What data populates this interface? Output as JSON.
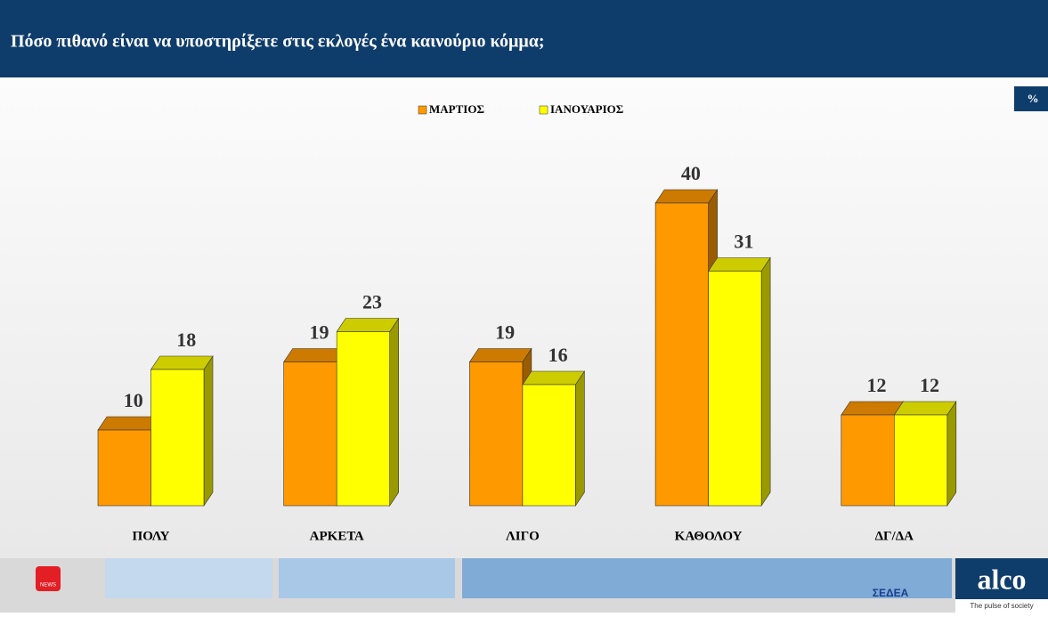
{
  "chart_data": {
    "type": "bar3d",
    "title": "Πόσο πιθανό είναι να υποστηρίξετε στις εκλογές ένα καινούριο κόμμα;",
    "unit_badge": "%",
    "categories": [
      "ΠΟΛΥ",
      "ΑΡΚΕΤΑ",
      "ΛΙΓΟ",
      "ΚΑΘΟΛΟΥ",
      "ΔΓ/ΔΑ"
    ],
    "series": [
      {
        "name": "ΜΑΡΤΙΟΣ",
        "color": "#ff9900",
        "values": [
          10,
          19,
          19,
          40,
          12
        ]
      },
      {
        "name": "ΙΑΝΟΥΑΡΙΟΣ",
        "color": "#ffff00",
        "values": [
          18,
          23,
          16,
          31,
          12
        ]
      }
    ],
    "legend": "top"
  },
  "footer": {
    "news_logo": "NEWS",
    "sedea": "ΣΕΔΕΑ",
    "alco": "alco",
    "alco_tagline": "The pulse of society"
  }
}
